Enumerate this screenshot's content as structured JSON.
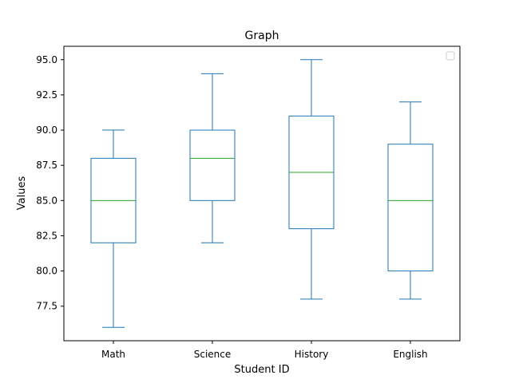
{
  "chart_data": {
    "type": "boxplot",
    "title": "Graph",
    "xlabel": "Student ID",
    "ylabel": "Values",
    "categories": [
      "Math",
      "Science",
      "History",
      "English"
    ],
    "boxes": [
      {
        "category": "Math",
        "whisker_low": 76.0,
        "q1": 82.0,
        "median": 85.0,
        "q3": 88.0,
        "whisker_high": 90.0
      },
      {
        "category": "Science",
        "whisker_low": 82.0,
        "q1": 85.0,
        "median": 88.0,
        "q3": 90.0,
        "whisker_high": 94.0
      },
      {
        "category": "History",
        "whisker_low": 78.0,
        "q1": 83.0,
        "median": 87.0,
        "q3": 91.0,
        "whisker_high": 95.0
      },
      {
        "category": "English",
        "whisker_low": 78.0,
        "q1": 80.0,
        "median": 85.0,
        "q3": 89.0,
        "whisker_high": 92.0
      }
    ],
    "ylim": [
      75.05,
      95.95
    ],
    "yticks": [
      "77.5",
      "80.0",
      "82.5",
      "85.0",
      "87.5",
      "90.0",
      "92.5",
      "95.0"
    ],
    "grid": false,
    "legend": {
      "placement": "top-right",
      "entries": []
    },
    "colors": {
      "box": "#1f77b4",
      "median": "#2ca02c",
      "axes": "#000000",
      "legend_border": "#cccccc"
    }
  }
}
